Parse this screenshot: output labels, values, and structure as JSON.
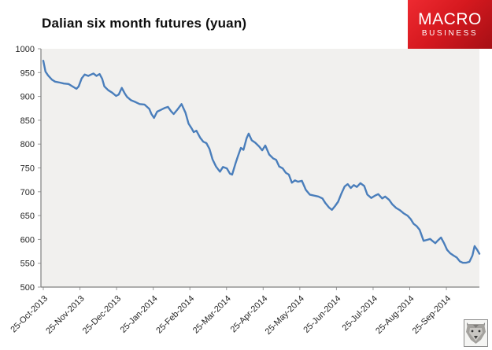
{
  "header": {
    "title": "Dalian six month futures (yuan)",
    "logo": {
      "line1": "MACRO",
      "line2": "BUSINESS",
      "bg_color": "#d6191f",
      "text_color": "#ffffff"
    }
  },
  "chart_data": {
    "type": "line",
    "title": "Dalian six month futures (yuan)",
    "xlabel": "",
    "ylabel": "",
    "ylim": [
      500,
      1000
    ],
    "y_tick_step": 50,
    "grid": false,
    "legend": "none",
    "plot_bg": "#f1f0ee",
    "axis_color": "#9a9a9a",
    "line_color": "#4a7ebb",
    "y_tick_labels": [
      "1000",
      "950",
      "900",
      "850",
      "800",
      "750",
      "700",
      "650",
      "600",
      "550",
      "500"
    ],
    "x_tick_labels": [
      "25-Oct-2013",
      "25-Nov-2013",
      "25-Dec-2013",
      "25-Jan-2014",
      "25-Feb-2014",
      "25-Mar-2014",
      "25-Apr-2014",
      "25-May-2014",
      "25-Jun-2014",
      "25-Jul-2014",
      "25-Aug-2014",
      "25-Sep-2014"
    ],
    "points": [
      [
        0.0,
        975
      ],
      [
        0.005,
        952
      ],
      [
        0.011,
        944
      ],
      [
        0.02,
        935
      ],
      [
        0.027,
        931
      ],
      [
        0.038,
        929
      ],
      [
        0.047,
        927
      ],
      [
        0.058,
        926
      ],
      [
        0.067,
        921
      ],
      [
        0.076,
        916
      ],
      [
        0.081,
        921
      ],
      [
        0.088,
        938
      ],
      [
        0.095,
        946
      ],
      [
        0.103,
        943
      ],
      [
        0.11,
        946
      ],
      [
        0.115,
        948
      ],
      [
        0.122,
        943
      ],
      [
        0.129,
        947
      ],
      [
        0.135,
        937
      ],
      [
        0.14,
        921
      ],
      [
        0.149,
        913
      ],
      [
        0.158,
        908
      ],
      [
        0.167,
        901
      ],
      [
        0.173,
        904
      ],
      [
        0.18,
        918
      ],
      [
        0.187,
        906
      ],
      [
        0.192,
        899
      ],
      [
        0.201,
        892
      ],
      [
        0.212,
        888
      ],
      [
        0.221,
        884
      ],
      [
        0.232,
        883
      ],
      [
        0.243,
        874
      ],
      [
        0.248,
        863
      ],
      [
        0.254,
        855
      ],
      [
        0.261,
        868
      ],
      [
        0.27,
        872
      ],
      [
        0.279,
        876
      ],
      [
        0.286,
        878
      ],
      [
        0.293,
        869
      ],
      [
        0.299,
        863
      ],
      [
        0.308,
        873
      ],
      [
        0.317,
        884
      ],
      [
        0.326,
        866
      ],
      [
        0.333,
        843
      ],
      [
        0.34,
        833
      ],
      [
        0.345,
        825
      ],
      [
        0.351,
        828
      ],
      [
        0.36,
        813
      ],
      [
        0.367,
        805
      ],
      [
        0.374,
        802
      ],
      [
        0.381,
        790
      ],
      [
        0.388,
        768
      ],
      [
        0.396,
        753
      ],
      [
        0.405,
        742
      ],
      [
        0.412,
        752
      ],
      [
        0.421,
        749
      ],
      [
        0.428,
        738
      ],
      [
        0.433,
        736
      ],
      [
        0.441,
        760
      ],
      [
        0.446,
        774
      ],
      [
        0.453,
        792
      ],
      [
        0.459,
        788
      ],
      [
        0.466,
        812
      ],
      [
        0.471,
        822
      ],
      [
        0.478,
        808
      ],
      [
        0.486,
        803
      ],
      [
        0.495,
        795
      ],
      [
        0.502,
        787
      ],
      [
        0.509,
        797
      ],
      [
        0.518,
        778
      ],
      [
        0.527,
        770
      ],
      [
        0.534,
        767
      ],
      [
        0.541,
        753
      ],
      [
        0.549,
        749
      ],
      [
        0.556,
        740
      ],
      [
        0.563,
        736
      ],
      [
        0.57,
        719
      ],
      [
        0.577,
        724
      ],
      [
        0.584,
        721
      ],
      [
        0.593,
        723
      ],
      [
        0.602,
        704
      ],
      [
        0.611,
        694
      ],
      [
        0.62,
        692
      ],
      [
        0.631,
        690
      ],
      [
        0.64,
        686
      ],
      [
        0.647,
        676
      ],
      [
        0.655,
        667
      ],
      [
        0.662,
        662
      ],
      [
        0.669,
        670
      ],
      [
        0.676,
        679
      ],
      [
        0.683,
        695
      ],
      [
        0.691,
        711
      ],
      [
        0.698,
        716
      ],
      [
        0.705,
        708
      ],
      [
        0.712,
        714
      ],
      [
        0.719,
        710
      ],
      [
        0.727,
        718
      ],
      [
        0.736,
        712
      ],
      [
        0.743,
        694
      ],
      [
        0.752,
        687
      ],
      [
        0.761,
        692
      ],
      [
        0.768,
        695
      ],
      [
        0.777,
        686
      ],
      [
        0.784,
        690
      ],
      [
        0.793,
        683
      ],
      [
        0.8,
        674
      ],
      [
        0.809,
        666
      ],
      [
        0.818,
        661
      ],
      [
        0.826,
        655
      ],
      [
        0.835,
        650
      ],
      [
        0.842,
        643
      ],
      [
        0.849,
        633
      ],
      [
        0.856,
        628
      ],
      [
        0.863,
        620
      ],
      [
        0.872,
        597
      ],
      [
        0.88,
        599
      ],
      [
        0.887,
        601
      ],
      [
        0.892,
        597
      ],
      [
        0.899,
        592
      ],
      [
        0.905,
        598
      ],
      [
        0.912,
        604
      ],
      [
        0.919,
        592
      ],
      [
        0.926,
        578
      ],
      [
        0.933,
        571
      ],
      [
        0.941,
        566
      ],
      [
        0.948,
        562
      ],
      [
        0.955,
        554
      ],
      [
        0.962,
        551
      ],
      [
        0.969,
        551
      ],
      [
        0.977,
        553
      ],
      [
        0.984,
        566
      ],
      [
        0.989,
        586
      ],
      [
        0.995,
        578
      ],
      [
        1.0,
        570
      ]
    ]
  },
  "footer": {
    "wolf_icon": "wolf-face"
  }
}
